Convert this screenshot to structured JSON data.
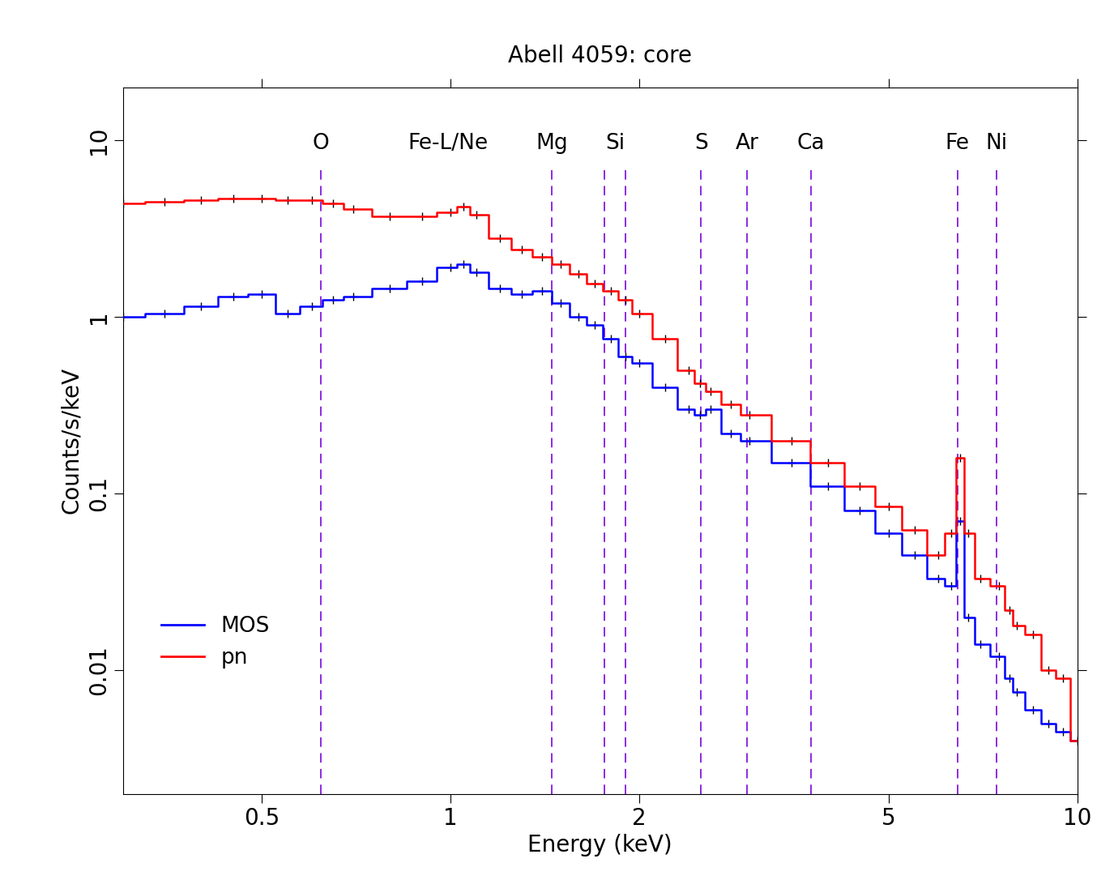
{
  "chart_data": {
    "type": "line",
    "title": "Abell 4059: core",
    "x_label": "Energy (keV)",
    "y_label": "Counts/s/keV",
    "log": true,
    "x": [
      0.3,
      0.35,
      0.4,
      0.45,
      0.5,
      0.55,
      0.6,
      0.65,
      0.7,
      0.8,
      0.9,
      1.0,
      1.05,
      1.1,
      1.2,
      1.3,
      1.4,
      1.5,
      1.6,
      1.7,
      1.8,
      1.9,
      2.0,
      2.2,
      2.4,
      2.5,
      2.6,
      2.8,
      3.0,
      3.5,
      4.0,
      4.5,
      5.0,
      5.5,
      6.0,
      6.3,
      6.5,
      6.7,
      7.0,
      7.5,
      7.8,
      8.0,
      8.5,
      9.0,
      9.5,
      10
    ],
    "series": [
      {
        "name": "MOS",
        "color": "#0000ff",
        "values": [
          1.0,
          1.05,
          1.15,
          1.3,
          1.35,
          1.05,
          1.15,
          1.25,
          1.3,
          1.45,
          1.6,
          1.9,
          2.0,
          1.8,
          1.45,
          1.35,
          1.4,
          1.2,
          1.0,
          0.9,
          0.75,
          0.6,
          0.55,
          0.4,
          0.3,
          0.28,
          0.3,
          0.22,
          0.2,
          0.15,
          0.11,
          0.08,
          0.06,
          0.045,
          0.033,
          0.03,
          0.07,
          0.02,
          0.014,
          0.012,
          0.009,
          0.0075,
          0.006,
          0.005,
          0.0045,
          0.004
        ]
      },
      {
        "name": "pn",
        "color": "#ff0000",
        "values": [
          4.4,
          4.5,
          4.6,
          4.7,
          4.7,
          4.6,
          4.6,
          4.4,
          4.1,
          3.7,
          3.7,
          3.9,
          4.2,
          3.8,
          2.8,
          2.4,
          2.2,
          2.0,
          1.75,
          1.55,
          1.4,
          1.25,
          1.05,
          0.75,
          0.5,
          0.42,
          0.38,
          0.32,
          0.28,
          0.2,
          0.15,
          0.11,
          0.085,
          0.062,
          0.045,
          0.06,
          0.16,
          0.06,
          0.033,
          0.03,
          0.022,
          0.018,
          0.016,
          0.01,
          0.009,
          0.004
        ]
      }
    ],
    "annotations": [
      {
        "text": "O",
        "x": 0.62,
        "lines": [
          0.62
        ]
      },
      {
        "text": "Fe-L/Ne",
        "x": 0.99,
        "lines": []
      },
      {
        "text": "Mg",
        "x": 1.45,
        "lines": [
          1.45
        ]
      },
      {
        "text": "Si",
        "x": 1.83,
        "lines": [
          1.76,
          1.9
        ]
      },
      {
        "text": "S",
        "x": 2.51,
        "lines": [
          2.51
        ]
      },
      {
        "text": "Ar",
        "x": 2.97,
        "lines": [
          2.97
        ]
      },
      {
        "text": "Ca",
        "x": 3.76,
        "lines": [
          3.76
        ]
      },
      {
        "text": "Fe",
        "x": 6.44,
        "lines": [
          6.44
        ]
      },
      {
        "text": "Ni",
        "x": 7.44,
        "lines": [
          7.44
        ]
      }
    ],
    "xlim": [
      0.3,
      10
    ],
    "ylim": [
      0.002,
      20
    ],
    "xticks": [
      0.5,
      1,
      2,
      5,
      10
    ],
    "yticks": [
      0.01,
      0.1,
      1,
      10
    ],
    "legend": "lower left",
    "grid": false
  }
}
